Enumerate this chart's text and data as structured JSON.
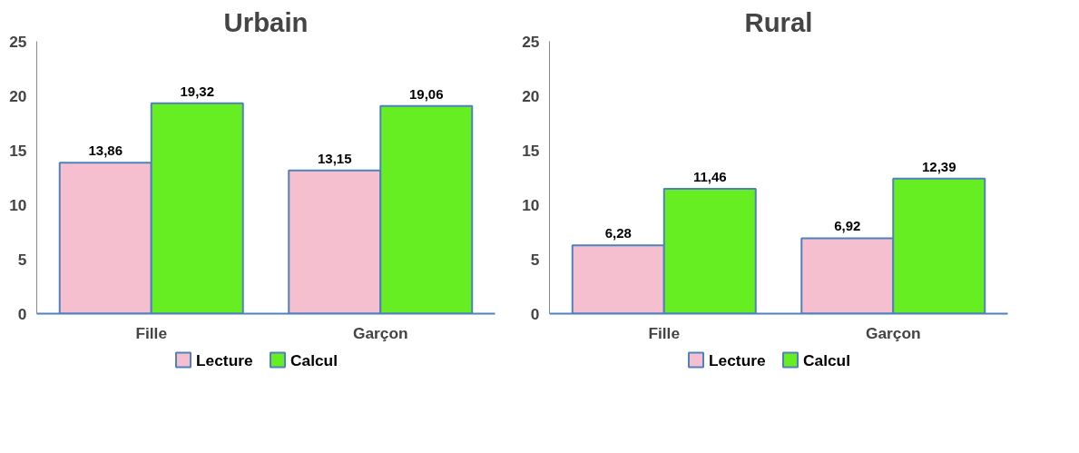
{
  "chart_data": [
    {
      "type": "bar",
      "title": "Urbain",
      "categories": [
        "Fille",
        "Garçon"
      ],
      "series": [
        {
          "name": "Lecture",
          "color": "#f6bfcf",
          "values": [
            13.86,
            13.15
          ],
          "value_labels": [
            "13,86",
            "13,15"
          ]
        },
        {
          "name": "Calcul",
          "color": "#66ee22",
          "values": [
            19.32,
            19.06
          ],
          "value_labels": [
            "19,32",
            "19,06"
          ]
        }
      ],
      "ylim": [
        0,
        25
      ],
      "yticks": [
        0,
        5,
        10,
        15,
        20,
        25
      ],
      "grid": false,
      "legend": "bottom"
    },
    {
      "type": "bar",
      "title": "Rural",
      "categories": [
        "Fille",
        "Garçon"
      ],
      "series": [
        {
          "name": "Lecture",
          "color": "#f6bfcf",
          "values": [
            6.28,
            6.92
          ],
          "value_labels": [
            "6,28",
            "6,92"
          ]
        },
        {
          "name": "Calcul",
          "color": "#66ee22",
          "values": [
            11.46,
            12.39
          ],
          "value_labels": [
            "11,46",
            "12,39"
          ]
        }
      ],
      "ylim": [
        0,
        25
      ],
      "yticks": [
        0,
        5,
        10,
        15,
        20,
        25
      ],
      "grid": false,
      "legend": "bottom"
    }
  ]
}
